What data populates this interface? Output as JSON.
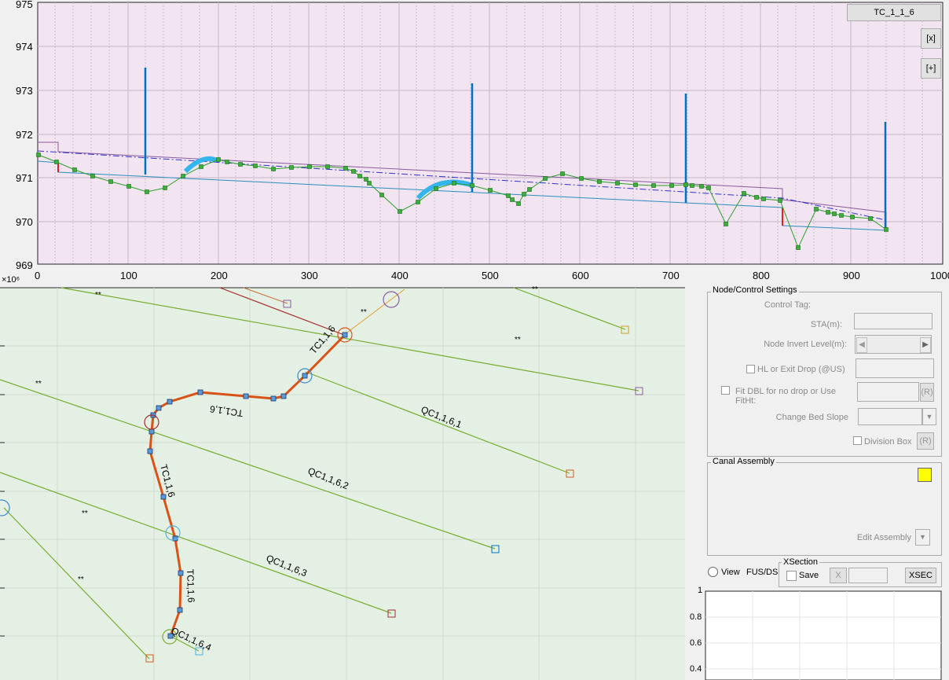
{
  "profile_plot": {
    "y_ticks": [
      "975",
      "974",
      "973",
      "972",
      "971",
      "970",
      "969"
    ],
    "x_ticks": [
      "0",
      "100",
      "200",
      "300",
      "400",
      "500",
      "600",
      "700",
      "800",
      "900",
      "1000"
    ],
    "title_button": "TC_1_1_6",
    "close_button": "[x]",
    "expand_button": "[+]"
  },
  "plan_map": {
    "exponent_label": "×10⁶",
    "route_labels": [
      "TC1,1,6",
      "TC1,1,6",
      "TC1,1,6",
      "TC1,1,6"
    ],
    "lateral_labels": [
      "QC1,1,6,1",
      "QC1,1,6,2",
      "QC1,1,6,3",
      "QC1,1,6,4"
    ],
    "marker": "**"
  },
  "node_control": {
    "title": "Node/Control Settings",
    "control_tag_label": "Control Tag:",
    "sta_label": "STA(m):",
    "node_invert_label": "Node Invert Level(m):",
    "hl_exit_drop_label": "HL or Exit Drop (@US)",
    "fit_dbl_label": "Fit DBL for no drop or Use FitHt:",
    "fit_dbl_r": "(R)",
    "change_bed_slope_label": "Change Bed Slope",
    "division_box_label": "Division Box",
    "division_box_r": "(R)"
  },
  "canal_assembly": {
    "title": "Canal Assembly",
    "edit_assembly_label": "Edit Assembly",
    "color": "#ffff00"
  },
  "view_controls": {
    "view_label": "View",
    "fus_ds_label": "FUS/DS",
    "xsection_title": "XSection",
    "save_label": "Save",
    "x_button": "X",
    "xsec_button": "XSEC"
  },
  "mini_plot": {
    "y_ticks": [
      "1",
      "0.8",
      "0.6",
      "0.4"
    ]
  },
  "colors": {
    "profile_bg": "#f2e4f0",
    "plan_bg": "#e5f0e4",
    "route": "#d95319",
    "profile_line": "#2ca02c",
    "lateral": "#77ac30",
    "stem": "#0072bd"
  }
}
